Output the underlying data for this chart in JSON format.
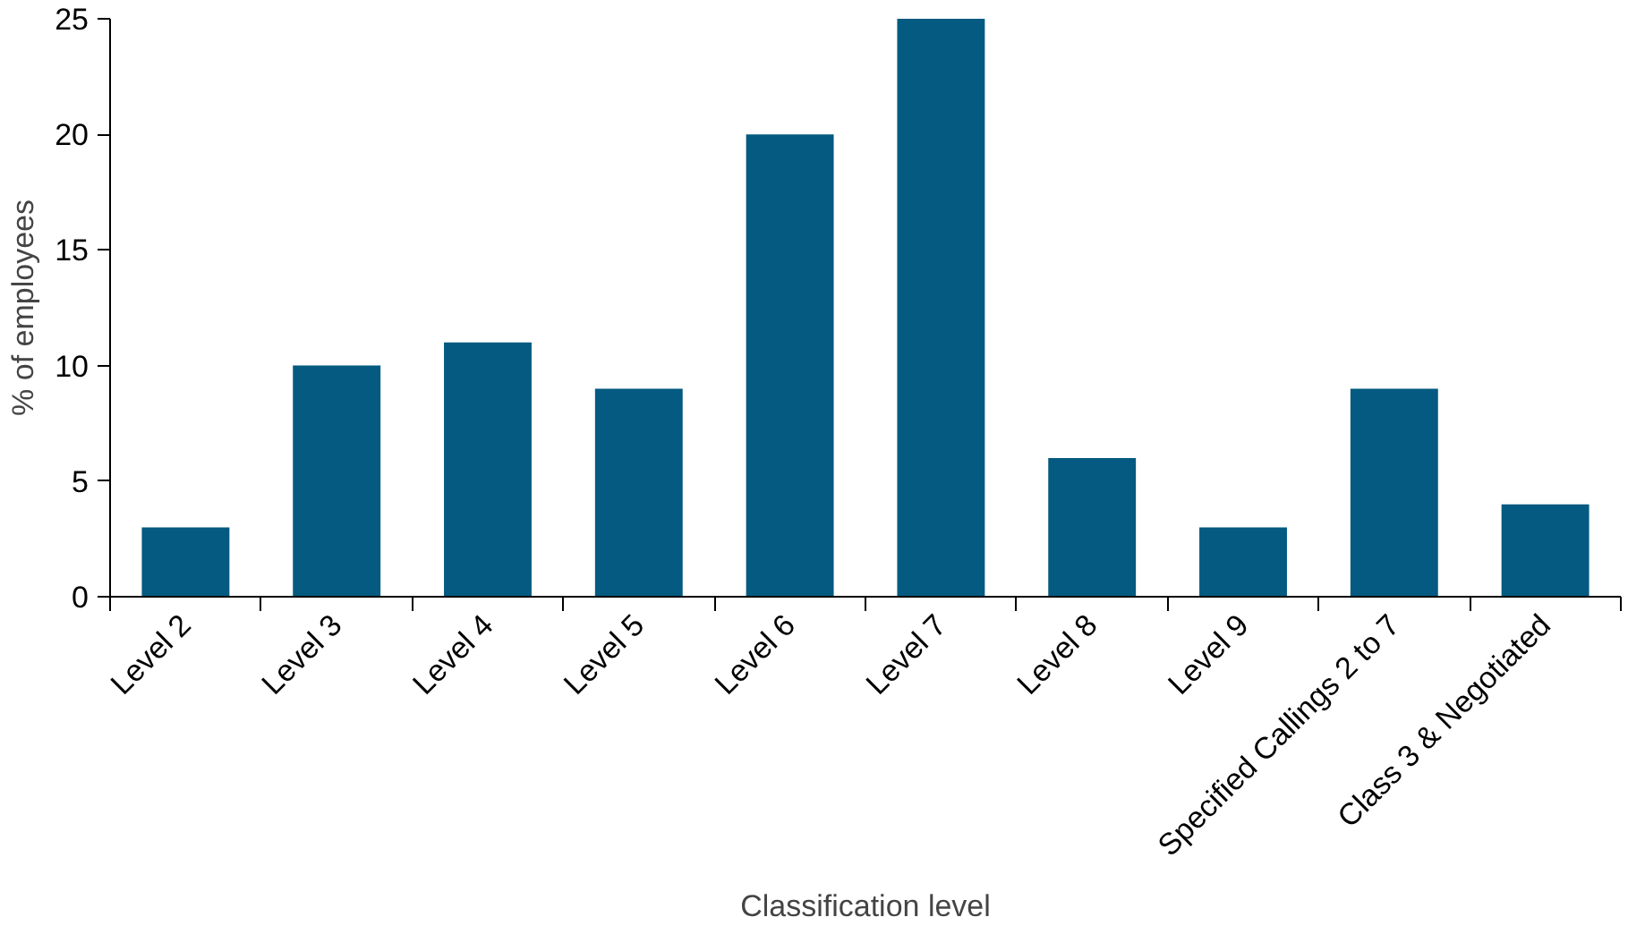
{
  "chart_data": {
    "type": "bar",
    "xlabel": "Classification level",
    "ylabel": "% of employees",
    "categories": [
      "Level 2",
      "Level 3",
      "Level 4",
      "Level 5",
      "Level 6",
      "Level 7",
      "Level 8",
      "Level 9",
      "Specified Callings 2 to 7",
      "Class 3 & Negotiated"
    ],
    "values": [
      3,
      10,
      11,
      9,
      20,
      25,
      6,
      3,
      9,
      4
    ],
    "color": "#045a80",
    "ylim": [
      0,
      25
    ],
    "yticks": [
      0,
      5,
      10,
      15,
      20,
      25
    ],
    "grid": false
  }
}
